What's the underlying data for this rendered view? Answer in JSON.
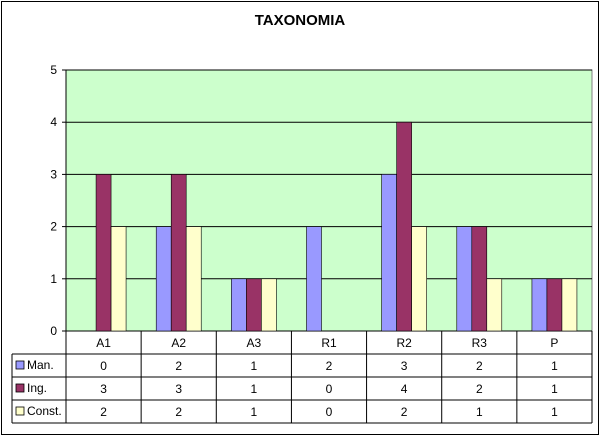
{
  "chart_data": {
    "type": "bar",
    "title": "TAXONOMIA",
    "categories": [
      "A1",
      "A2",
      "A3",
      "R1",
      "R2",
      "R3",
      "P"
    ],
    "series": [
      {
        "name": "Man.",
        "values": [
          0,
          2,
          1,
          2,
          3,
          2,
          1
        ],
        "color": "#9999FF"
      },
      {
        "name": "Ing.",
        "values": [
          3,
          3,
          1,
          0,
          4,
          2,
          1
        ],
        "color": "#993366"
      },
      {
        "name": "Const.",
        "values": [
          2,
          2,
          1,
          0,
          2,
          1,
          1
        ],
        "color": "#FFFFCC"
      }
    ],
    "ylim": [
      0,
      5
    ],
    "yticks": [
      0,
      1,
      2,
      3,
      4,
      5
    ],
    "grid": true,
    "plot_background": "#CCFFCC",
    "legend": "data-table"
  }
}
